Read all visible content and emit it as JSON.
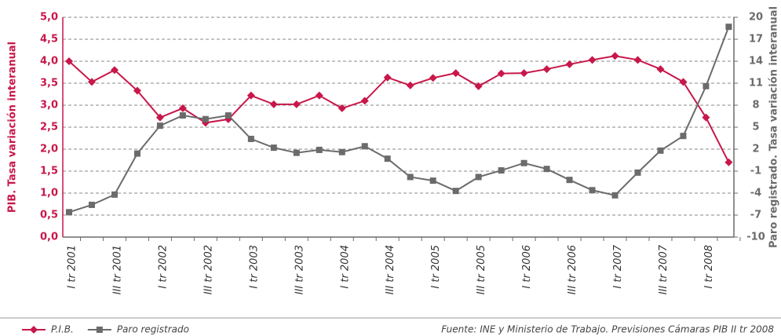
{
  "chart_data": {
    "type": "line",
    "ylabel": "PIB. Tasa variación interanual",
    "y2label": "Paro registrado. Tasa variación interanual",
    "source": "Fuente: INE y Ministerio de Trabajo. Previsiones Cámaras PIB II tr 2008",
    "categories": [
      "I tr 2001",
      null,
      "III tr 2001",
      null,
      "I tr 2002",
      null,
      "III tr 2002",
      null,
      "I tr 2003",
      null,
      "III tr 2003",
      null,
      "I tr 2004",
      null,
      "III tr 2004",
      null,
      "I tr 2005",
      null,
      "III tr 2005",
      null,
      "I tr 2006",
      null,
      "III tr 2006",
      null,
      "I tr 2007",
      null,
      "III tr 2007",
      null,
      "I tr 2008",
      null
    ],
    "series": [
      {
        "name": "P.I.B.",
        "color": "#c8174a",
        "marker": "diamond",
        "values": [
          4.0,
          3.53,
          3.8,
          3.33,
          2.72,
          2.93,
          2.6,
          2.68,
          3.22,
          3.02,
          3.02,
          3.22,
          2.93,
          3.1,
          3.63,
          3.45,
          3.62,
          3.73,
          3.43,
          3.72,
          3.73,
          3.82,
          3.93,
          4.03,
          4.12,
          4.03,
          3.82,
          3.53,
          2.72,
          1.7
        ]
      },
      {
        "name": "Paro registrado",
        "color": "#6b6b6b",
        "marker": "square",
        "axis": "y2",
        "values": [
          -6.6,
          -5.6,
          -4.2,
          1.4,
          5.2,
          6.6,
          6.1,
          6.6,
          3.4,
          2.2,
          1.5,
          1.9,
          1.6,
          2.4,
          0.7,
          -1.8,
          -2.3,
          -3.7,
          -1.8,
          -0.9,
          0.1,
          -0.7,
          -2.2,
          -3.6,
          -4.3,
          -1.2,
          1.8,
          3.8,
          10.6,
          18.7
        ]
      }
    ],
    "ylim": [
      0,
      5
    ],
    "yticks": [
      {
        "value": 0,
        "label": "0,0"
      },
      {
        "value": 0.5,
        "label": "0,5"
      },
      {
        "value": 1,
        "label": "1,0"
      },
      {
        "value": 1.5,
        "label": "1,5"
      },
      {
        "value": 2,
        "label": "2,0"
      },
      {
        "value": 2.5,
        "label": "2,5"
      },
      {
        "value": 3,
        "label": "3,0"
      },
      {
        "value": 3.5,
        "label": "3,5"
      },
      {
        "value": 4,
        "label": "4,0"
      },
      {
        "value": 4.5,
        "label": "4,5"
      },
      {
        "value": 5,
        "label": "5,0"
      }
    ],
    "y2lim": [
      -10,
      20
    ],
    "y2ticks": [
      -10,
      -7,
      -4,
      -1,
      2,
      5,
      8,
      11,
      14,
      17,
      20
    ],
    "grid": true
  }
}
